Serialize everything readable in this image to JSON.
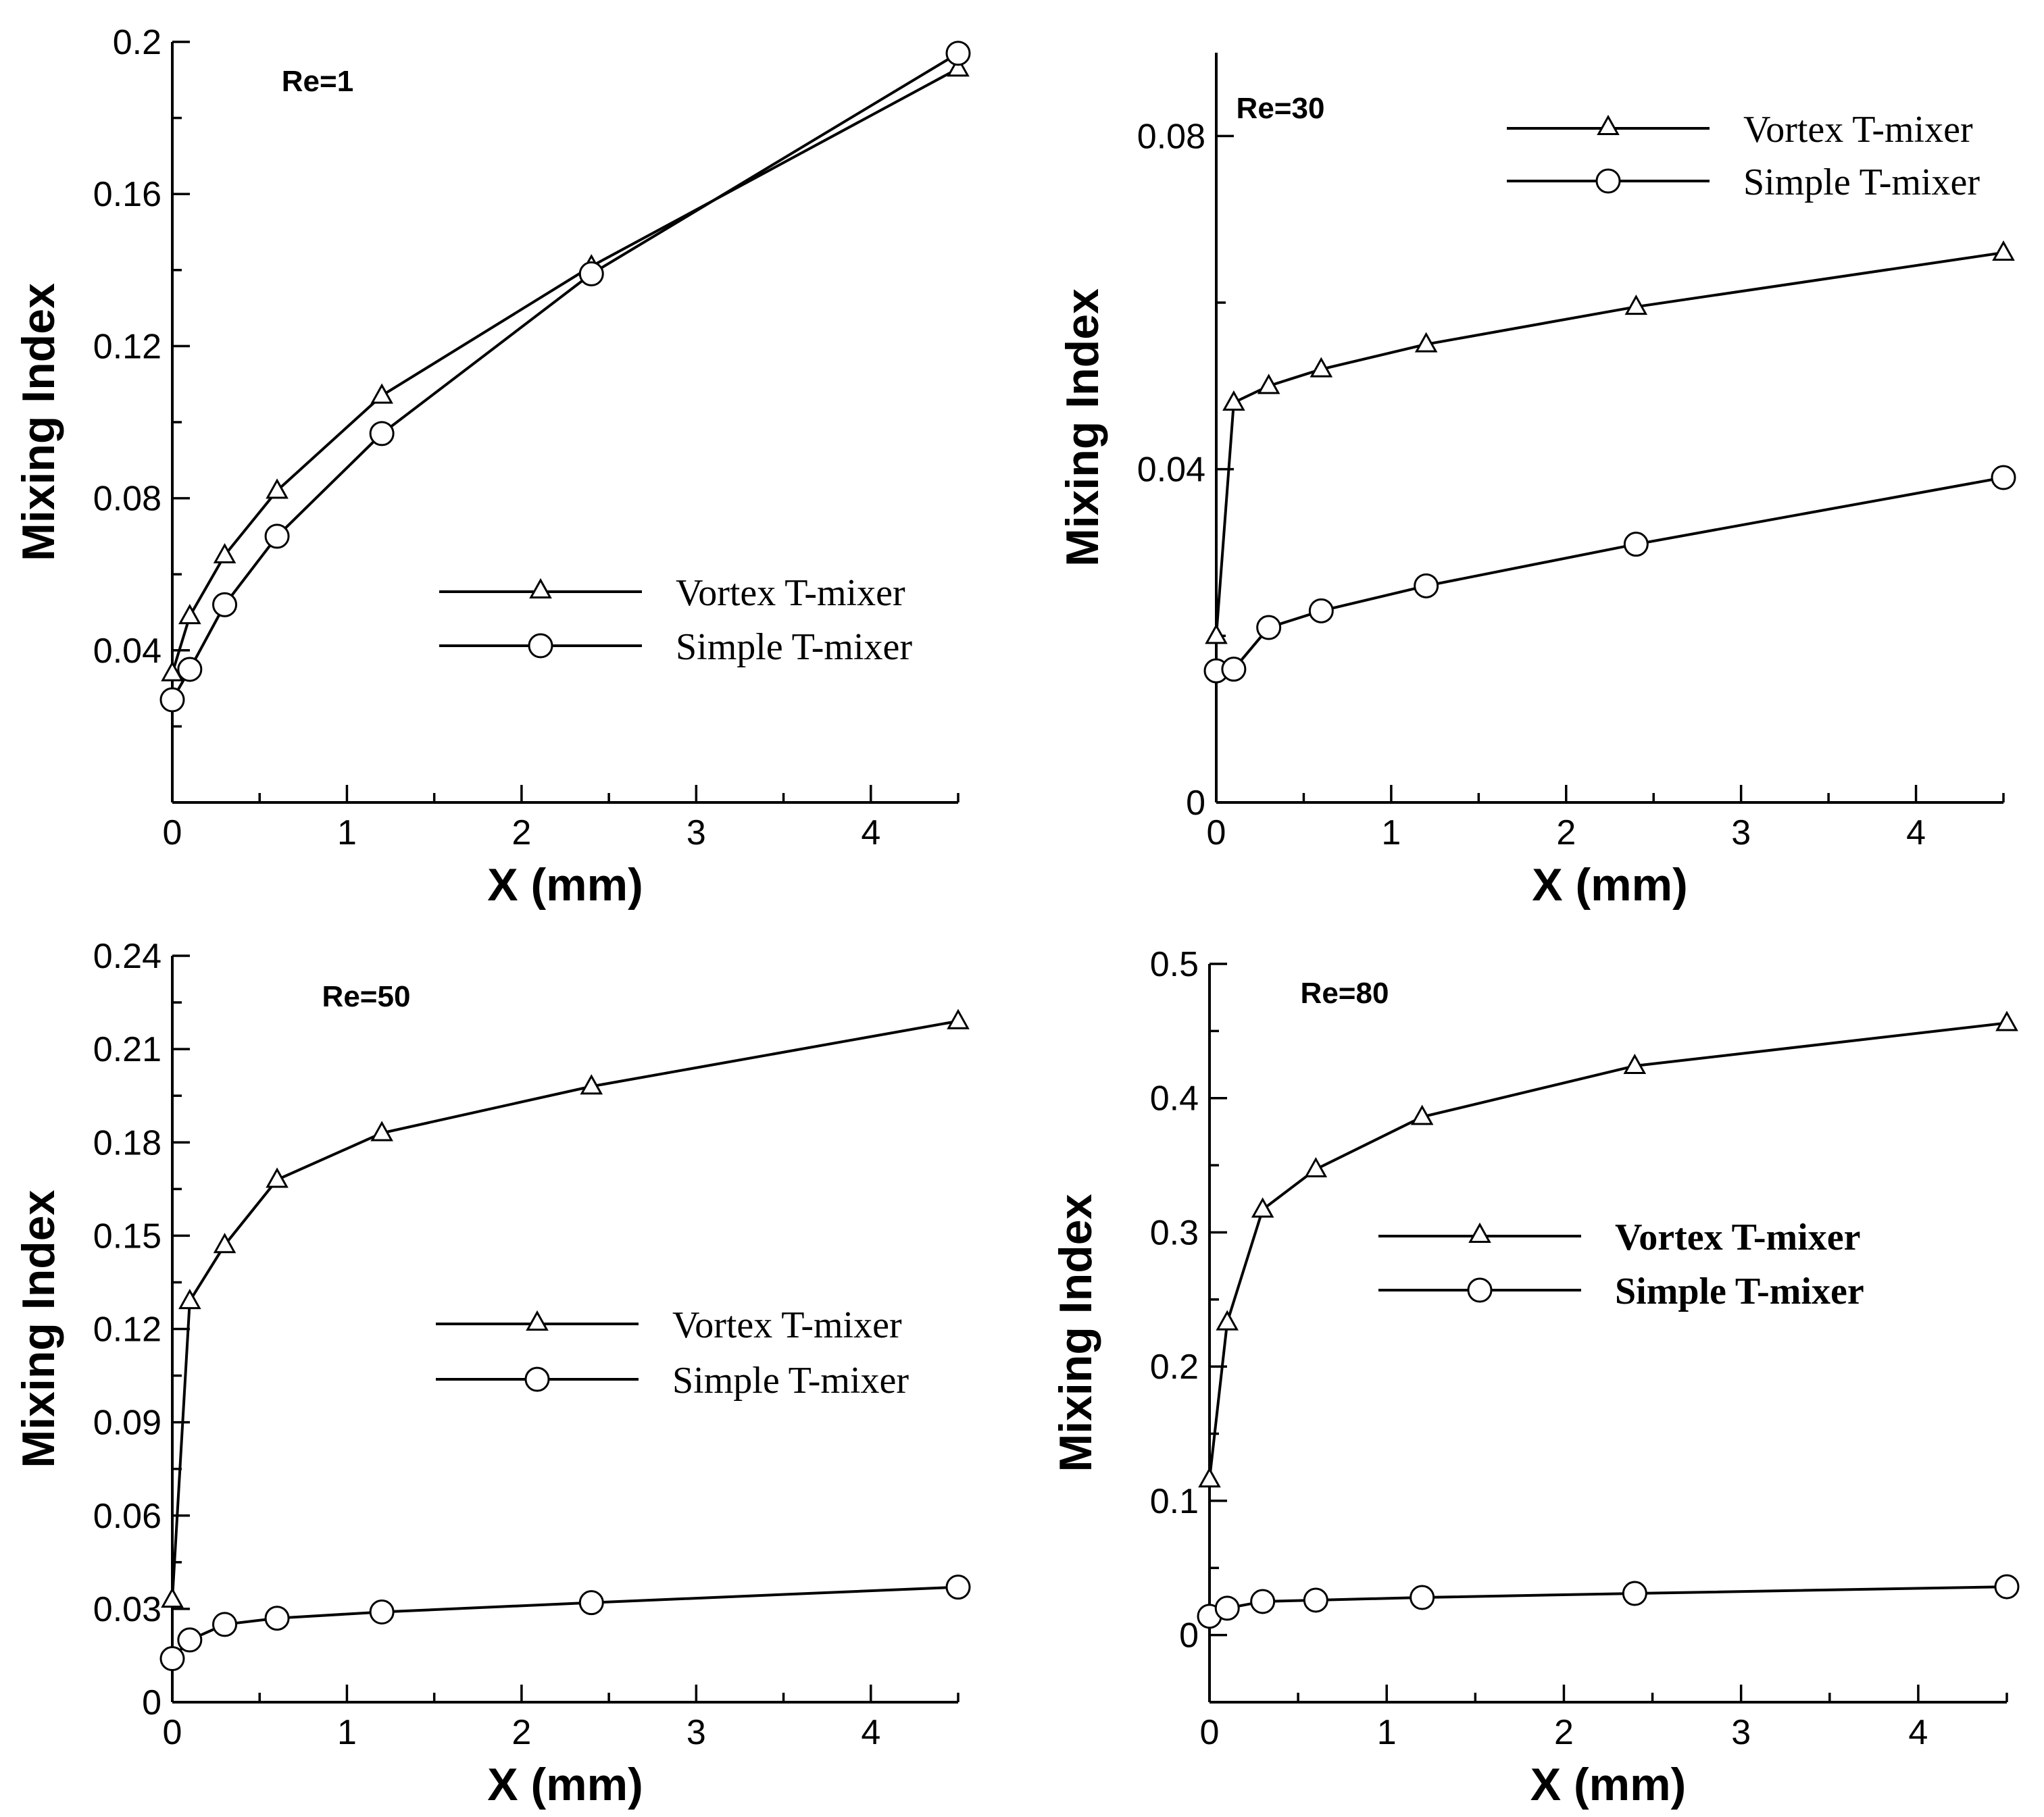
{
  "chart_data": [
    {
      "type": "line",
      "title": "Re=1",
      "xlabel": "X (mm)",
      "ylabel": "Mixing Index",
      "xlim": [
        0,
        4.5
      ],
      "ylim": [
        0,
        0.2
      ],
      "xticks": [
        "0",
        "1",
        "2",
        "3",
        "4"
      ],
      "yticks": [
        "0.04",
        "0.08",
        "0.12",
        "0.16",
        "0.2"
      ],
      "legend_position": "center-right",
      "legend_bold": false,
      "series": [
        {
          "name": "Vortex T-mixer",
          "marker": "triangle",
          "x": [
            0,
            0.1,
            0.3,
            0.6,
            1.2,
            2.4,
            4.5
          ],
          "values": [
            0.034,
            0.049,
            0.065,
            0.082,
            0.107,
            0.141,
            0.193
          ]
        },
        {
          "name": "Simple T-mixer",
          "marker": "circle",
          "x": [
            0,
            0.1,
            0.3,
            0.6,
            1.2,
            2.4,
            4.5
          ],
          "values": [
            0.027,
            0.035,
            0.052,
            0.07,
            0.097,
            0.139,
            0.197
          ]
        }
      ]
    },
    {
      "type": "line",
      "title": "Re=30",
      "xlabel": "X (mm)",
      "ylabel": "Mixing Index",
      "xlim": [
        0,
        4.5
      ],
      "ylim": [
        0,
        0.09
      ],
      "xticks": [
        "0",
        "1",
        "2",
        "3",
        "4"
      ],
      "yticks": [
        "0",
        "0.04",
        "0.08"
      ],
      "legend_position": "top-right",
      "legend_bold": false,
      "series": [
        {
          "name": "Vortex T-mixer",
          "marker": "triangle",
          "x": [
            0,
            0.1,
            0.3,
            0.6,
            1.2,
            2.4,
            4.5
          ],
          "values": [
            0.02,
            0.048,
            0.05,
            0.052,
            0.055,
            0.0595,
            0.066
          ]
        },
        {
          "name": "Simple T-mixer",
          "marker": "circle",
          "x": [
            0,
            0.1,
            0.3,
            0.6,
            1.2,
            2.4,
            4.5
          ],
          "values": [
            0.0158,
            0.016,
            0.021,
            0.023,
            0.026,
            0.031,
            0.039
          ]
        }
      ]
    },
    {
      "type": "line",
      "title": "Re=50",
      "xlabel": "X (mm)",
      "ylabel": "Mixing Index",
      "xlim": [
        0,
        4.5
      ],
      "ylim": [
        0,
        0.24
      ],
      "xticks": [
        "0",
        "1",
        "2",
        "3",
        "4"
      ],
      "yticks": [
        "0",
        "0.03",
        "0.06",
        "0.09",
        "0.12",
        "0.15",
        "0.18",
        "0.21",
        "0.24"
      ],
      "legend_position": "center-right",
      "legend_bold": false,
      "series": [
        {
          "name": "Vortex T-mixer",
          "marker": "triangle",
          "x": [
            0,
            0.1,
            0.3,
            0.6,
            1.2,
            2.4,
            4.5
          ],
          "values": [
            0.033,
            0.129,
            0.147,
            0.168,
            0.183,
            0.198,
            0.219
          ]
        },
        {
          "name": "Simple T-mixer",
          "marker": "circle",
          "x": [
            0,
            0.1,
            0.3,
            0.6,
            1.2,
            2.4,
            4.5
          ],
          "values": [
            0.014,
            0.02,
            0.025,
            0.027,
            0.029,
            0.032,
            0.037
          ]
        }
      ]
    },
    {
      "type": "line",
      "title": "Re=80",
      "xlabel": "X (mm)",
      "ylabel": "Mixing Index",
      "xlim": [
        0,
        4.5
      ],
      "ylim": [
        -0.05,
        0.5
      ],
      "xticks": [
        "0",
        "1",
        "2",
        "3",
        "4"
      ],
      "yticks": [
        "0",
        "0.1",
        "0.2",
        "0.3",
        "0.4",
        "0.5"
      ],
      "legend_position": "center-right",
      "legend_bold": true,
      "series": [
        {
          "name": "Vortex T-mixer",
          "marker": "triangle",
          "x": [
            0,
            0.1,
            0.3,
            0.6,
            1.2,
            2.4,
            4.5
          ],
          "values": [
            0.116,
            0.233,
            0.317,
            0.347,
            0.386,
            0.424,
            0.456
          ]
        },
        {
          "name": "Simple T-mixer",
          "marker": "circle",
          "x": [
            0,
            0.1,
            0.3,
            0.6,
            1.2,
            2.4,
            4.5
          ],
          "values": [
            0.014,
            0.02,
            0.025,
            0.026,
            0.028,
            0.031,
            0.036
          ]
        }
      ]
    }
  ]
}
